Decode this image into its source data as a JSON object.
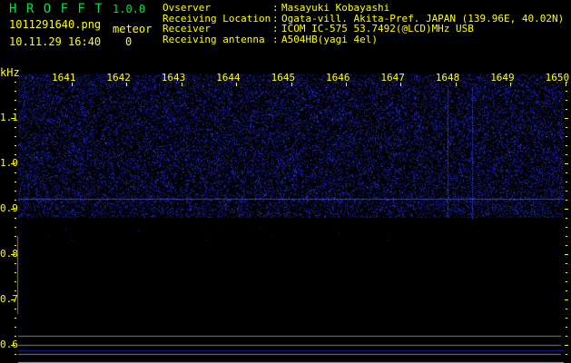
{
  "app": {
    "title": "H R O F F T",
    "version": "1.0.0",
    "title_color": "#00e040"
  },
  "file": {
    "name": "1011291640.png",
    "datetime": "10.11.29 16:40"
  },
  "meteor": {
    "label": "meteor",
    "count": "0"
  },
  "info": [
    {
      "label": "Ovserver",
      "value": "Masayuki Kobayashi"
    },
    {
      "label": "Receiving Location",
      "value": "Ogata-vill. Akita-Pref. JAPAN (139.96E, 40.02N)"
    },
    {
      "label": "Receiver",
      "value": "ICOM IC-575 53.7492(@LCD)MHz USB"
    },
    {
      "label": "Receiving antenna",
      "value": "A504HB(yagi 4el)"
    }
  ],
  "axis": {
    "y_unit": "kHz",
    "y_labels": [
      "1.1",
      "1.0",
      "0.9",
      "0.8",
      "0.7",
      "0.6"
    ],
    "time_labels": [
      "1641",
      "1642",
      "1643",
      "1644",
      "1645",
      "1646",
      "1647",
      "1648",
      "1649",
      "1650"
    ]
  },
  "colors": {
    "text": "#ffff00",
    "noise": "#2030c0",
    "grid": "#808080",
    "baseline": "#00e0e0"
  }
}
